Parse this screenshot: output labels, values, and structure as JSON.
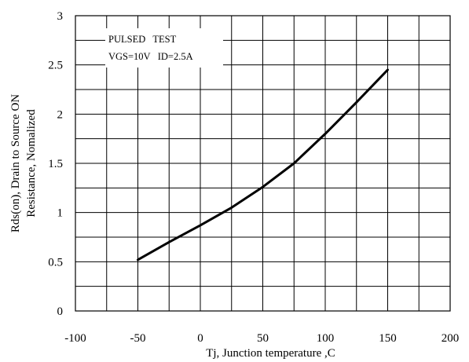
{
  "chart_data": {
    "type": "line",
    "xlabel": "Tj, Junction temperature ,C",
    "ylabel_lines": [
      "Rds(on), Drain to Source ON",
      "Resistance, Nomalized"
    ],
    "xlim": [
      -100,
      200
    ],
    "ylim": [
      0,
      3
    ],
    "x_ticks": [
      "-100",
      "-50",
      "0",
      "50",
      "100",
      "150",
      "200"
    ],
    "y_ticks": [
      "0",
      "0.5",
      "1",
      "1.5",
      "2",
      "2.5",
      "3"
    ],
    "x_minor_step": 25,
    "y_minor_step": 0.25,
    "grid": true,
    "annotation": [
      "PULSED   TEST",
      "VGS=10V   ID=2.5A"
    ],
    "series": [
      {
        "color": "#000000",
        "x": [
          -50,
          -25,
          0,
          25,
          50,
          75,
          100,
          125,
          150
        ],
        "y": [
          0.52,
          0.7,
          0.87,
          1.05,
          1.26,
          1.5,
          1.8,
          2.12,
          2.45
        ]
      }
    ]
  }
}
